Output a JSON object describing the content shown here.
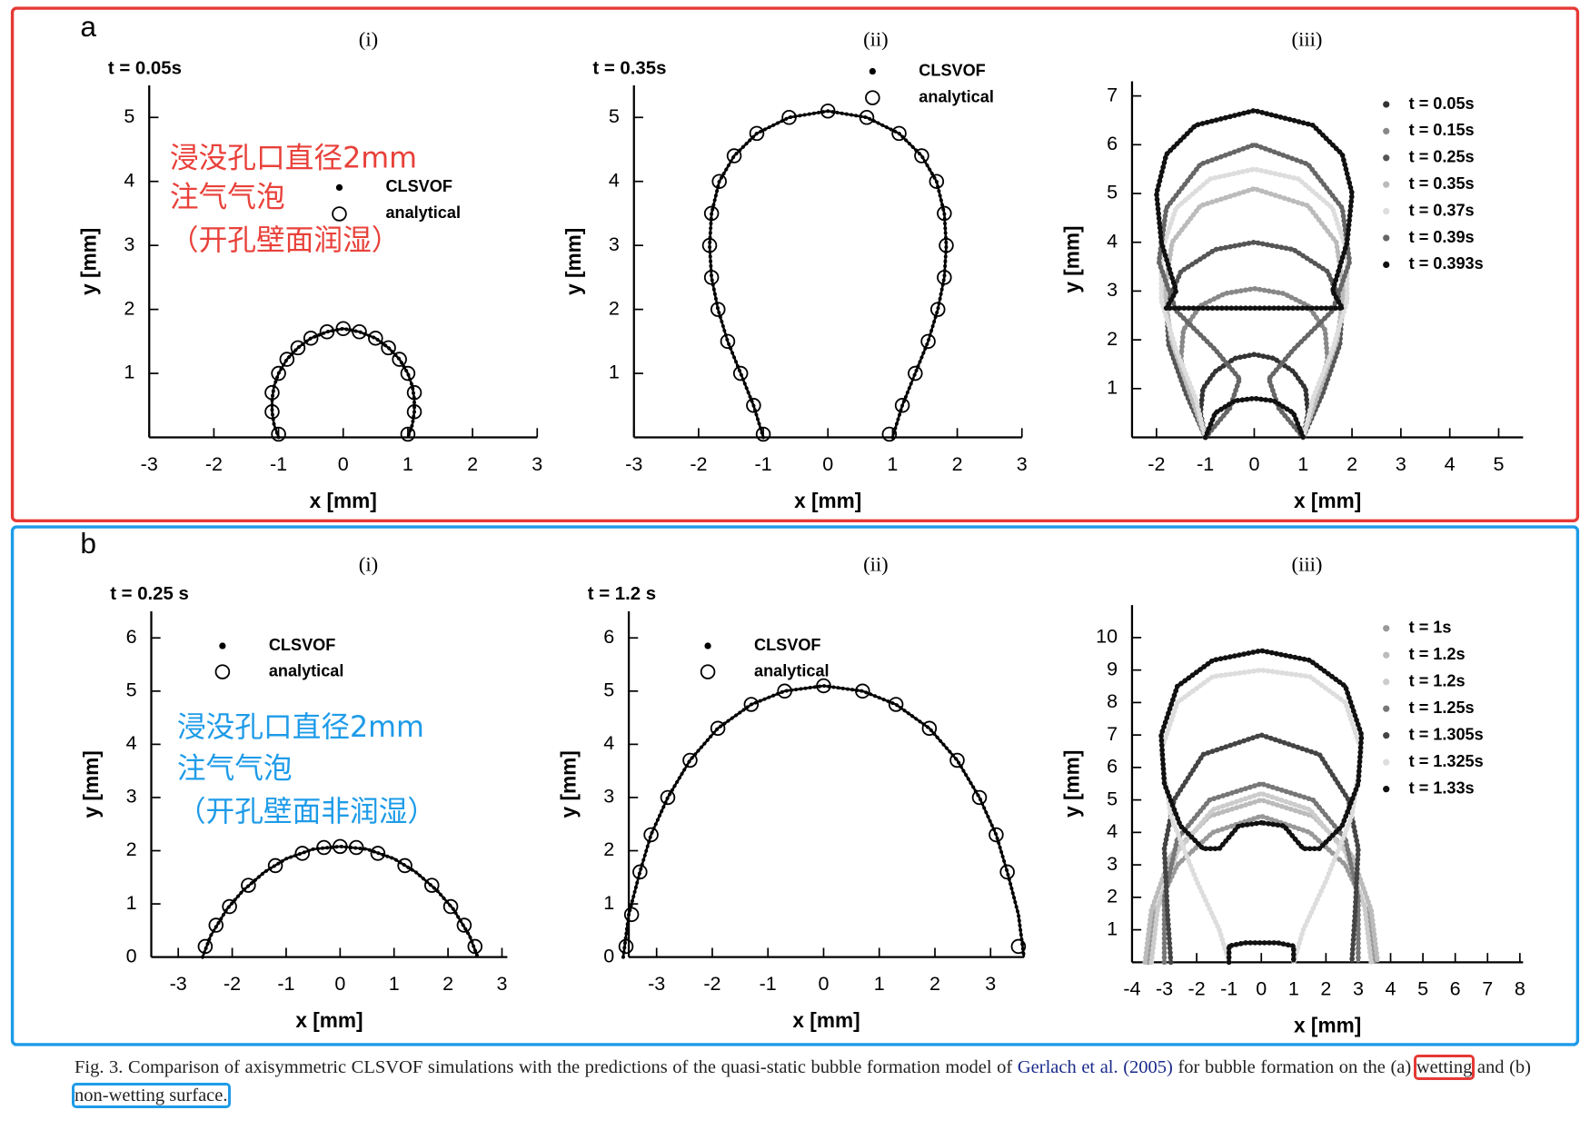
{
  "panels": [
    {
      "label": "a",
      "note": [
        "浸没孔口直径2mm",
        "注气气泡",
        "（开孔壁面润湿）"
      ]
    },
    {
      "label": "b",
      "note": [
        "浸没孔口直径2mm",
        "注气气泡",
        "（开孔壁面非润湿）"
      ]
    }
  ],
  "chart_data": [
    {
      "type": "scatter",
      "title": "(i)",
      "annotation": "t = 0.05s",
      "xlabel": "x [mm]",
      "ylabel": "y [mm]",
      "xlim": [
        -3,
        3
      ],
      "ylim": [
        0,
        5.5
      ],
      "xticks": [
        -3,
        -2,
        -1,
        0,
        1,
        2,
        3
      ],
      "yticks": [
        1,
        2,
        3,
        4,
        5
      ],
      "legend": "center",
      "series": [
        {
          "name": "CLSVOF",
          "color": "#000000",
          "marker": "dot",
          "x": [
            -1.0,
            -1.07,
            -1.1,
            -1.1,
            -1.07,
            -1.0,
            -0.87,
            -0.7,
            -0.5,
            -0.25,
            0,
            0.25,
            0.5,
            0.7,
            0.87,
            1.0,
            1.07,
            1.1,
            1.1,
            1.07,
            1.0
          ],
          "y": [
            0,
            0.2,
            0.4,
            0.6,
            0.8,
            1.0,
            1.22,
            1.4,
            1.55,
            1.65,
            1.7,
            1.65,
            1.55,
            1.4,
            1.22,
            1.0,
            0.8,
            0.6,
            0.4,
            0.2,
            0
          ]
        },
        {
          "name": "analytical",
          "color": "#000000",
          "marker": "circle",
          "x": [
            -1.0,
            -1.1,
            -1.1,
            -1.0,
            -0.87,
            -0.7,
            -0.5,
            -0.25,
            0,
            0.25,
            0.5,
            0.7,
            0.87,
            1.0,
            1.1,
            1.1,
            1.0
          ],
          "y": [
            0.05,
            0.4,
            0.7,
            1.0,
            1.22,
            1.4,
            1.55,
            1.65,
            1.7,
            1.65,
            1.55,
            1.4,
            1.22,
            1.0,
            0.7,
            0.4,
            0.05
          ]
        }
      ]
    },
    {
      "type": "scatter",
      "title": "(ii)",
      "annotation": "t = 0.35s",
      "xlabel": "x [mm]",
      "ylabel": "y [mm]",
      "xlim": [
        -3,
        3
      ],
      "ylim": [
        0,
        5.5
      ],
      "xticks": [
        -3,
        -2,
        -1,
        0,
        1,
        2,
        3
      ],
      "yticks": [
        1,
        2,
        3,
        4,
        5
      ],
      "legend": "upper center",
      "series": [
        {
          "name": "CLSVOF",
          "color": "#000000",
          "marker": "dot",
          "x": [
            -1.0,
            -1.15,
            -1.35,
            -1.55,
            -1.7,
            -1.8,
            -1.83,
            -1.8,
            -1.68,
            -1.45,
            -1.1,
            -0.6,
            0,
            0.6,
            1.1,
            1.45,
            1.68,
            1.8,
            1.83,
            1.8,
            1.7,
            1.55,
            1.35,
            1.15,
            1.0
          ],
          "y": [
            0,
            0.5,
            1.0,
            1.5,
            2.0,
            2.5,
            3.0,
            3.5,
            4.0,
            4.4,
            4.75,
            5.0,
            5.1,
            5.0,
            4.75,
            4.4,
            4.0,
            3.5,
            3.0,
            2.5,
            2.0,
            1.5,
            1.0,
            0.5,
            0
          ]
        },
        {
          "name": "analytical",
          "color": "#000000",
          "marker": "circle",
          "x": [
            -1.0,
            -1.15,
            -1.35,
            -1.55,
            -1.7,
            -1.8,
            -1.83,
            -1.8,
            -1.68,
            -1.45,
            -1.1,
            -0.6,
            0,
            0.6,
            1.1,
            1.45,
            1.68,
            1.8,
            1.83,
            1.8,
            1.7,
            1.55,
            1.35,
            1.15,
            0.95
          ],
          "y": [
            0.05,
            0.5,
            1.0,
            1.5,
            2.0,
            2.5,
            3.0,
            3.5,
            4.0,
            4.4,
            4.75,
            5.0,
            5.1,
            5.0,
            4.75,
            4.4,
            4.0,
            3.5,
            3.0,
            2.5,
            2.0,
            1.5,
            1.0,
            0.5,
            0.05
          ]
        }
      ]
    },
    {
      "type": "scatter",
      "title": "(iii)",
      "xlabel": "x [mm]",
      "ylabel": "y [mm]",
      "xlim": [
        -2.5,
        5.5
      ],
      "ylim": [
        0,
        7.3
      ],
      "xticks": [
        -2,
        -1,
        0,
        1,
        2,
        3,
        4,
        5
      ],
      "yticks": [
        1,
        2,
        3,
        4,
        5,
        6,
        7
      ],
      "legend": "upper right",
      "series": [
        {
          "name": "t = 0.05s",
          "color": "#333333",
          "marker": "dot",
          "x": [
            -1,
            -1.1,
            -1.05,
            -0.8,
            -0.4,
            0,
            0.4,
            0.8,
            1.05,
            1.1,
            1
          ],
          "y": [
            0,
            0.5,
            1.0,
            1.35,
            1.62,
            1.7,
            1.62,
            1.35,
            1.0,
            0.5,
            0
          ]
        },
        {
          "name": "t = 0.15s",
          "color": "#888888",
          "marker": "dot",
          "x": [
            -1,
            -1.3,
            -1.5,
            -1.45,
            -1.1,
            -0.6,
            0,
            0.6,
            1.1,
            1.45,
            1.5,
            1.3,
            1
          ],
          "y": [
            0,
            0.8,
            1.6,
            2.2,
            2.7,
            2.95,
            3.05,
            2.95,
            2.7,
            2.2,
            1.6,
            0.8,
            0
          ]
        },
        {
          "name": "t = 0.25s",
          "color": "#555555",
          "marker": "dot",
          "x": [
            -1,
            -1.4,
            -1.75,
            -1.8,
            -1.5,
            -0.8,
            0,
            0.8,
            1.5,
            1.8,
            1.75,
            1.4,
            1
          ],
          "y": [
            0,
            0.9,
            1.9,
            2.7,
            3.4,
            3.85,
            4.0,
            3.85,
            3.4,
            2.7,
            1.9,
            0.9,
            0
          ]
        },
        {
          "name": "t = 0.35s",
          "color": "#bbbbbb",
          "marker": "dot",
          "x": [
            -1,
            -1.35,
            -1.7,
            -1.83,
            -1.68,
            -1.1,
            0,
            1.1,
            1.68,
            1.83,
            1.7,
            1.35,
            1
          ],
          "y": [
            0,
            1.0,
            2.0,
            3.0,
            4.0,
            4.75,
            5.1,
            4.75,
            4.0,
            3.0,
            2.0,
            1.0,
            0
          ]
        },
        {
          "name": "t = 0.37s",
          "color": "#dddddd",
          "marker": "dot",
          "x": [
            -1,
            -1.2,
            -1.6,
            -1.9,
            -1.9,
            -1.6,
            -0.9,
            0,
            0.9,
            1.6,
            1.9,
            1.9,
            1.6,
            1.2,
            1
          ],
          "y": [
            0,
            0.8,
            1.8,
            2.8,
            3.8,
            4.7,
            5.3,
            5.5,
            5.3,
            4.7,
            3.8,
            2.8,
            1.8,
            0.8,
            0
          ]
        },
        {
          "name": "t = 0.39s",
          "color": "#666666",
          "marker": "dot",
          "x": [
            -1,
            -0.5,
            -0.3,
            -0.8,
            -1.6,
            -1.95,
            -1.8,
            -1.1,
            0,
            1.1,
            1.8,
            1.95,
            1.6,
            0.8,
            0.3,
            0.5,
            1
          ],
          "y": [
            0,
            0.6,
            1.2,
            1.8,
            2.6,
            3.6,
            4.7,
            5.6,
            6.0,
            5.6,
            4.7,
            3.6,
            2.6,
            1.8,
            1.2,
            0.6,
            0
          ]
        },
        {
          "name": "t = 0.393s",
          "color": "#111111",
          "marker": "dot",
          "x": [
            -1,
            -0.8,
            -0.4,
            0,
            0.4,
            0.8,
            1,
            null,
            -1.8,
            -1.6,
            -1.9,
            -2.0,
            -1.8,
            -1.2,
            0,
            1.2,
            1.8,
            2.0,
            1.9,
            1.6,
            1.8,
            0,
            -1.8
          ],
          "y": [
            0,
            0.5,
            0.75,
            0.8,
            0.75,
            0.5,
            0,
            null,
            2.65,
            3.0,
            4.0,
            5.0,
            5.8,
            6.4,
            6.7,
            6.4,
            5.8,
            5.0,
            4.0,
            3.0,
            2.65,
            2.65,
            2.65
          ]
        }
      ]
    },
    {
      "type": "scatter",
      "title": "(i)",
      "annotation": "t = 0.25 s",
      "xlabel": "x [mm]",
      "ylabel": "y [mm]",
      "xlim": [
        -3.5,
        3.1
      ],
      "ylim": [
        0,
        6.5
      ],
      "xticks": [
        -3,
        -2,
        -1,
        0,
        1,
        2,
        3
      ],
      "yticks": [
        0,
        1,
        2,
        3,
        4,
        5,
        6
      ],
      "legend": "upper left",
      "series": [
        {
          "name": "CLSVOF",
          "color": "#000000",
          "marker": "dot",
          "x": [
            -2.55,
            -2.4,
            -2.1,
            -1.8,
            -1.4,
            -1.0,
            -0.5,
            0,
            0.5,
            1.0,
            1.4,
            1.8,
            2.1,
            2.4,
            2.55
          ],
          "y": [
            0,
            0.4,
            0.9,
            1.25,
            1.6,
            1.85,
            2.03,
            2.08,
            2.03,
            1.85,
            1.6,
            1.25,
            0.9,
            0.4,
            0
          ]
        },
        {
          "name": "analytical",
          "color": "#000000",
          "marker": "circle",
          "x": [
            -2.5,
            -2.3,
            -2.05,
            -1.7,
            -1.2,
            -0.7,
            -0.3,
            0,
            0.3,
            0.7,
            1.2,
            1.7,
            2.05,
            2.3,
            2.5
          ],
          "y": [
            0.2,
            0.6,
            0.95,
            1.35,
            1.72,
            1.95,
            2.06,
            2.08,
            2.06,
            1.95,
            1.72,
            1.35,
            0.95,
            0.6,
            0.2
          ]
        }
      ]
    },
    {
      "type": "scatter",
      "title": "(ii)",
      "annotation": "t = 1.2 s",
      "xlabel": "x [mm]",
      "ylabel": "y [mm]",
      "xlim": [
        -3.5,
        3.6
      ],
      "ylim": [
        0,
        6.5
      ],
      "xticks": [
        -3,
        -2,
        -1,
        0,
        1,
        2,
        3
      ],
      "yticks": [
        0,
        1,
        2,
        3,
        4,
        5,
        6
      ],
      "legend": "upper left",
      "series": [
        {
          "name": "CLSVOF",
          "color": "#000000",
          "marker": "dot",
          "x": [
            -3.6,
            -3.5,
            -3.3,
            -3.1,
            -2.8,
            -2.4,
            -1.9,
            -1.3,
            -0.7,
            0,
            0.7,
            1.3,
            1.9,
            2.4,
            2.8,
            3.1,
            3.3,
            3.5,
            3.6
          ],
          "y": [
            0,
            0.8,
            1.6,
            2.3,
            3.0,
            3.7,
            4.3,
            4.75,
            5.0,
            5.1,
            5.0,
            4.75,
            4.3,
            3.7,
            3.0,
            2.3,
            1.6,
            0.8,
            0
          ]
        },
        {
          "name": "analytical",
          "color": "#000000",
          "marker": "circle",
          "x": [
            -3.55,
            -3.45,
            -3.3,
            -3.1,
            -2.8,
            -2.4,
            -1.9,
            -1.3,
            -0.7,
            0,
            0.7,
            1.3,
            1.9,
            2.4,
            2.8,
            3.1,
            3.3,
            3.5
          ],
          "y": [
            0.2,
            0.8,
            1.6,
            2.3,
            3.0,
            3.7,
            4.3,
            4.75,
            5.0,
            5.1,
            5.0,
            4.75,
            4.3,
            3.7,
            3.0,
            2.3,
            1.6,
            0.2
          ]
        }
      ]
    },
    {
      "type": "scatter",
      "title": "(iii)",
      "xlabel": "x [mm]",
      "ylabel": "y [mm]",
      "xlim": [
        -4,
        8.1
      ],
      "ylim": [
        0,
        11
      ],
      "xticks": [
        -4,
        -3,
        -2,
        -1,
        0,
        1,
        2,
        3,
        4,
        5,
        6,
        7,
        8
      ],
      "yticks": [
        1,
        2,
        3,
        4,
        5,
        6,
        7,
        8,
        9,
        10
      ],
      "legend": "upper right",
      "series": [
        {
          "name": "t = 1s",
          "color": "#999999",
          "marker": "dot",
          "x": [
            -3.5,
            -3.3,
            -2.6,
            -1.5,
            0,
            1.5,
            2.6,
            3.3,
            3.5
          ],
          "y": [
            0,
            1.5,
            3.0,
            4.0,
            4.5,
            4.0,
            3.0,
            1.5,
            0
          ]
        },
        {
          "name": "t = 1.2s",
          "color": "#bbbbbb",
          "marker": "dot",
          "x": [
            -3.6,
            -3.4,
            -2.8,
            -1.6,
            0,
            1.6,
            2.8,
            3.4,
            3.6
          ],
          "y": [
            0,
            1.6,
            3.3,
            4.5,
            5.0,
            4.5,
            3.3,
            1.6,
            0
          ]
        },
        {
          "name": "t = 1.2s",
          "color": "#cccccc",
          "marker": "dot",
          "x": [
            -3.4,
            -3.2,
            -2.6,
            -1.5,
            0,
            1.5,
            2.6,
            3.2,
            3.4
          ],
          "y": [
            0,
            1.7,
            3.4,
            4.7,
            5.2,
            4.7,
            3.4,
            1.7,
            0
          ]
        },
        {
          "name": "t = 1.25s",
          "color": "#777777",
          "marker": "dot",
          "x": [
            -3.0,
            -3.0,
            -2.6,
            -1.6,
            0,
            1.6,
            2.6,
            3.0,
            3.0
          ],
          "y": [
            0,
            2.0,
            3.8,
            5.0,
            5.5,
            5.0,
            3.8,
            2.0,
            0
          ]
        },
        {
          "name": "t = 1.305s",
          "color": "#444444",
          "marker": "dot",
          "x": [
            -2.8,
            -2.9,
            -3.0,
            -2.7,
            -1.8,
            0,
            1.8,
            2.7,
            3.0,
            2.9,
            2.8
          ],
          "y": [
            0,
            1.5,
            3.5,
            5.0,
            6.4,
            7.0,
            6.4,
            5.0,
            3.5,
            1.5,
            0
          ]
        },
        {
          "name": "t = 1.325s",
          "color": "#dddddd",
          "marker": "dot",
          "x": [
            -1,
            -1.3,
            -2.0,
            -2.8,
            -3.1,
            -2.6,
            -1.5,
            0,
            1.5,
            2.6,
            3.1,
            2.8,
            2.0,
            1.3,
            1
          ],
          "y": [
            0,
            1.0,
            2.5,
            4.5,
            6.5,
            8.0,
            8.8,
            9.0,
            8.8,
            8.0,
            6.5,
            4.5,
            2.5,
            1.0,
            0
          ]
        },
        {
          "name": "t = 1.33s",
          "color": "#111111",
          "marker": "dot",
          "x": [
            -1,
            -1,
            -0.5,
            0,
            0.5,
            1,
            1,
            null,
            0,
            -0.7,
            -1.3,
            -1.8,
            -2.5,
            -3.0,
            -3.1,
            -2.6,
            -1.5,
            0,
            1.5,
            2.6,
            3.1,
            3.0,
            2.5,
            1.8,
            1.3,
            0.7,
            0
          ],
          "y": [
            0,
            0.5,
            0.6,
            0.6,
            0.6,
            0.5,
            0,
            null,
            4.3,
            4.2,
            3.5,
            3.5,
            4.2,
            5.5,
            7.0,
            8.5,
            9.3,
            9.6,
            9.3,
            8.5,
            7.0,
            5.5,
            4.2,
            3.5,
            3.5,
            4.2,
            4.3
          ]
        }
      ]
    }
  ],
  "caption": {
    "parts": [
      "Fig. 3. Comparison of axisymmetric CLSVOF simulations with the predictions of the quasi-static bubble formation model of ",
      "Gerlach et al. (2005)",
      " for bubble formation on the (a) ",
      "wetting",
      " and (b) ",
      "non-wetting surface."
    ]
  }
}
